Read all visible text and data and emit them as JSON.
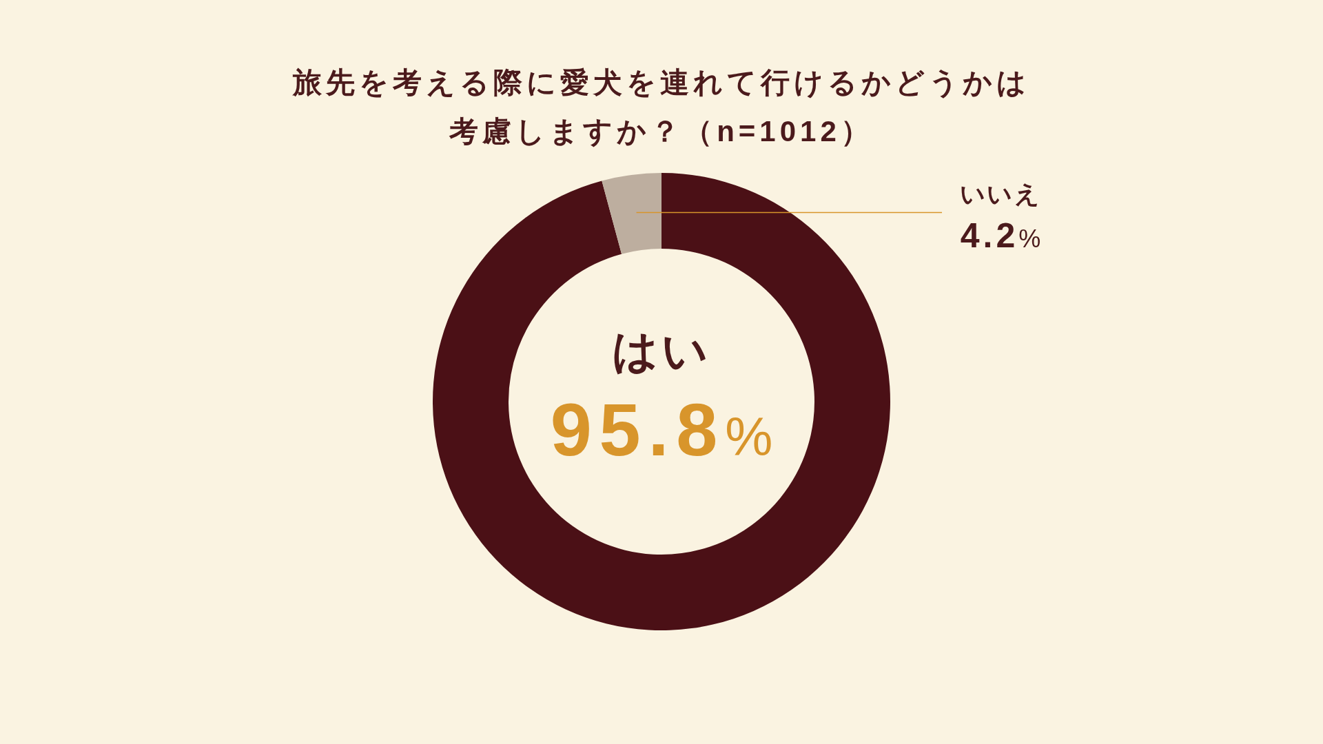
{
  "chart_data": {
    "type": "donut",
    "title": "旅先を考える際に愛犬を連れて行けるかどうかは考慮しますか？（n=1012）",
    "categories": [
      "はい",
      "いいえ"
    ],
    "values": [
      95.8,
      4.2
    ],
    "colors": [
      "#4b1016",
      "#bdae9f"
    ],
    "value_labels": [
      "95.8%",
      "4.2%"
    ]
  }
}
